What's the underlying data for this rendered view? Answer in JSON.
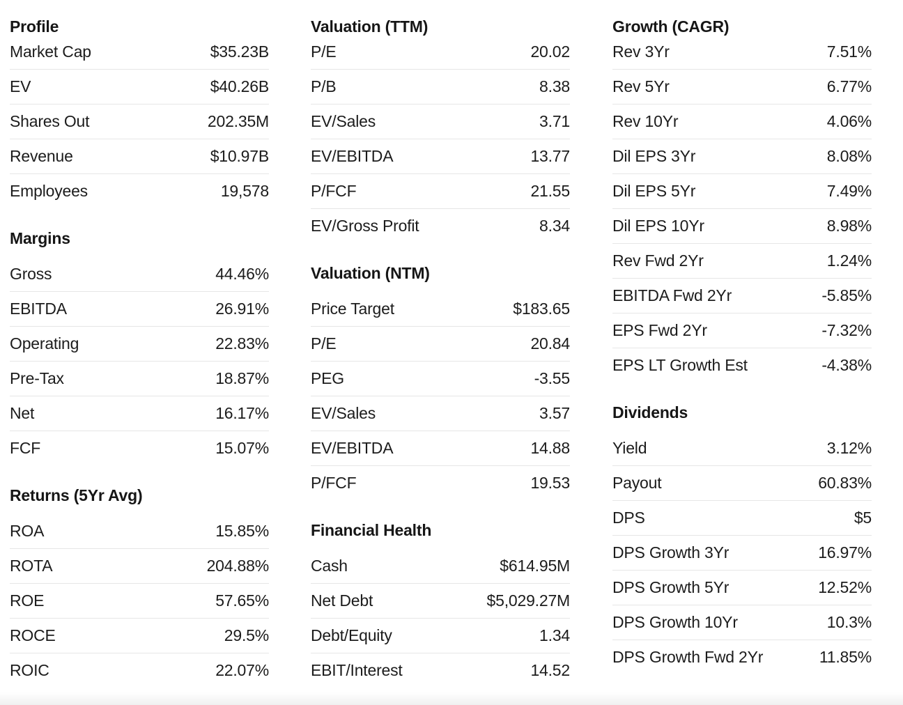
{
  "columns": [
    {
      "sections": [
        {
          "title": "Profile",
          "rows": [
            {
              "label": "Market Cap",
              "value": "$35.23B"
            },
            {
              "label": "EV",
              "value": "$40.26B"
            },
            {
              "label": "Shares Out",
              "value": "202.35M"
            },
            {
              "label": "Revenue",
              "value": "$10.97B"
            },
            {
              "label": "Employees",
              "value": "19,578"
            }
          ]
        },
        {
          "title": "Margins",
          "rows": [
            {
              "label": "Gross",
              "value": "44.46%"
            },
            {
              "label": "EBITDA",
              "value": "26.91%"
            },
            {
              "label": "Operating",
              "value": "22.83%"
            },
            {
              "label": "Pre-Tax",
              "value": "18.87%"
            },
            {
              "label": "Net",
              "value": "16.17%"
            },
            {
              "label": "FCF",
              "value": "15.07%"
            }
          ]
        },
        {
          "title": "Returns (5Yr Avg)",
          "rows": [
            {
              "label": "ROA",
              "value": "15.85%"
            },
            {
              "label": "ROTA",
              "value": "204.88%"
            },
            {
              "label": "ROE",
              "value": "57.65%"
            },
            {
              "label": "ROCE",
              "value": "29.5%"
            },
            {
              "label": "ROIC",
              "value": "22.07%"
            }
          ]
        }
      ]
    },
    {
      "sections": [
        {
          "title": "Valuation (TTM)",
          "rows": [
            {
              "label": "P/E",
              "value": "20.02"
            },
            {
              "label": "P/B",
              "value": "8.38"
            },
            {
              "label": "EV/Sales",
              "value": "3.71"
            },
            {
              "label": "EV/EBITDA",
              "value": "13.77"
            },
            {
              "label": "P/FCF",
              "value": "21.55"
            },
            {
              "label": "EV/Gross Profit",
              "value": "8.34"
            }
          ]
        },
        {
          "title": "Valuation (NTM)",
          "rows": [
            {
              "label": "Price Target",
              "value": "$183.65"
            },
            {
              "label": "P/E",
              "value": "20.84"
            },
            {
              "label": "PEG",
              "value": "-3.55"
            },
            {
              "label": "EV/Sales",
              "value": "3.57"
            },
            {
              "label": "EV/EBITDA",
              "value": "14.88"
            },
            {
              "label": "P/FCF",
              "value": "19.53"
            }
          ]
        },
        {
          "title": "Financial Health",
          "rows": [
            {
              "label": "Cash",
              "value": "$614.95M"
            },
            {
              "label": "Net Debt",
              "value": "$5,029.27M"
            },
            {
              "label": "Debt/Equity",
              "value": "1.34"
            },
            {
              "label": "EBIT/Interest",
              "value": "14.52"
            }
          ]
        }
      ]
    },
    {
      "sections": [
        {
          "title": "Growth (CAGR)",
          "rows": [
            {
              "label": "Rev 3Yr",
              "value": "7.51%"
            },
            {
              "label": "Rev 5Yr",
              "value": "6.77%"
            },
            {
              "label": "Rev 10Yr",
              "value": "4.06%"
            },
            {
              "label": "Dil EPS 3Yr",
              "value": "8.08%"
            },
            {
              "label": "Dil EPS 5Yr",
              "value": "7.49%"
            },
            {
              "label": "Dil EPS 10Yr",
              "value": "8.98%"
            },
            {
              "label": "Rev Fwd 2Yr",
              "value": "1.24%"
            },
            {
              "label": "EBITDA Fwd 2Yr",
              "value": "-5.85%"
            },
            {
              "label": "EPS Fwd 2Yr",
              "value": "-7.32%"
            },
            {
              "label": "EPS LT Growth Est",
              "value": "-4.38%"
            }
          ]
        },
        {
          "title": "Dividends",
          "rows": [
            {
              "label": "Yield",
              "value": "3.12%"
            },
            {
              "label": "Payout",
              "value": "60.83%"
            },
            {
              "label": "DPS",
              "value": "$5"
            },
            {
              "label": "DPS Growth 3Yr",
              "value": "16.97%"
            },
            {
              "label": "DPS Growth 5Yr",
              "value": "12.52%"
            },
            {
              "label": "DPS Growth 10Yr",
              "value": "10.3%"
            },
            {
              "label": "DPS Growth Fwd 2Yr",
              "value": "11.85%"
            }
          ]
        }
      ]
    }
  ]
}
